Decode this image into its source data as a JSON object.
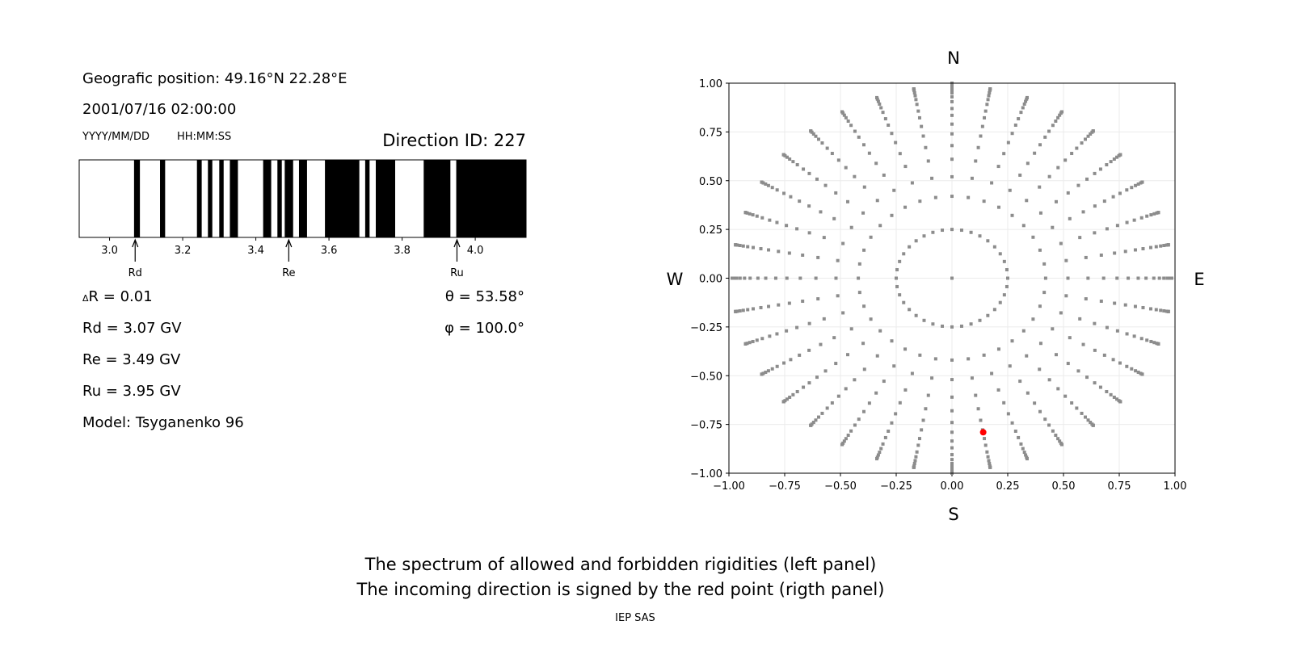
{
  "info": {
    "position": "Geografic position: 49.16°N 22.28°E",
    "datetime": "2001/07/16 02:00:00",
    "date_format": "YYYY/MM/DD",
    "time_format": "HH:MM:SS",
    "direction_id": "Direction ID: 227",
    "delta_r_symbol": "Δ",
    "delta_r": "R = 0.01",
    "rd": "Rd = 3.07 GV",
    "re": "Re = 3.49 GV",
    "ru": "Ru = 3.95 GV",
    "model": "Model: Tsyganenko 96",
    "theta": "θ = 53.58°",
    "phi": "φ = 100.0°"
  },
  "captions": {
    "line1": "The spectrum of allowed and forbidden rigidities (left panel)",
    "line2": "The incoming direction is signed by the red point (rigth panel)",
    "credit": "IEP SAS"
  },
  "compass": {
    "n": "N",
    "s": "S",
    "w": "W",
    "e": "E"
  },
  "chart_data": [
    {
      "type": "bar",
      "xlim": [
        2.917,
        4.139
      ],
      "xticks": [
        "3.0",
        "3.2",
        "3.4",
        "3.6",
        "3.8",
        "4.0"
      ],
      "band_color": "#000000",
      "background_color": "#ffffff",
      "black_bands": [
        [
          3.067,
          3.083
        ],
        [
          3.138,
          3.152
        ],
        [
          3.239,
          3.252
        ],
        [
          3.269,
          3.281
        ],
        [
          3.3,
          3.312
        ],
        [
          3.329,
          3.351
        ],
        [
          3.42,
          3.442
        ],
        [
          3.459,
          3.471
        ],
        [
          3.479,
          3.502
        ],
        [
          3.518,
          3.54
        ],
        [
          3.589,
          3.683
        ],
        [
          3.699,
          3.711
        ],
        [
          3.728,
          3.781
        ],
        [
          3.859,
          3.932
        ],
        [
          3.948,
          4.139
        ]
      ],
      "markers": [
        {
          "label": "Rd",
          "value": 3.07
        },
        {
          "label": "Re",
          "value": 3.49
        },
        {
          "label": "Ru",
          "value": 3.95
        }
      ]
    },
    {
      "type": "scatter",
      "xlim": [
        -1,
        1
      ],
      "ylim": [
        -1,
        1
      ],
      "xticks": [
        "−1.00",
        "−0.75",
        "−0.50",
        "−0.25",
        "0.00",
        "0.25",
        "0.50",
        "0.75",
        "1.00"
      ],
      "yticks": [
        "−1.00",
        "−0.75",
        "−0.50",
        "−0.25",
        "0.00",
        "0.25",
        "0.50",
        "0.75",
        "1.00"
      ],
      "grid": true,
      "point_color": "#8c8c8c",
      "azimuth_step_deg": 10,
      "ring_radii": [
        0.25,
        0.42,
        0.52,
        0.61,
        0.68,
        0.74,
        0.79,
        0.835,
        0.87,
        0.905,
        0.93,
        0.95,
        0.965,
        0.977,
        0.986,
        0.993,
        1.0
      ],
      "center_point": [
        0,
        0
      ],
      "highlight": {
        "x": 0.14,
        "y": -0.79,
        "color": "#ff0000"
      }
    }
  ]
}
